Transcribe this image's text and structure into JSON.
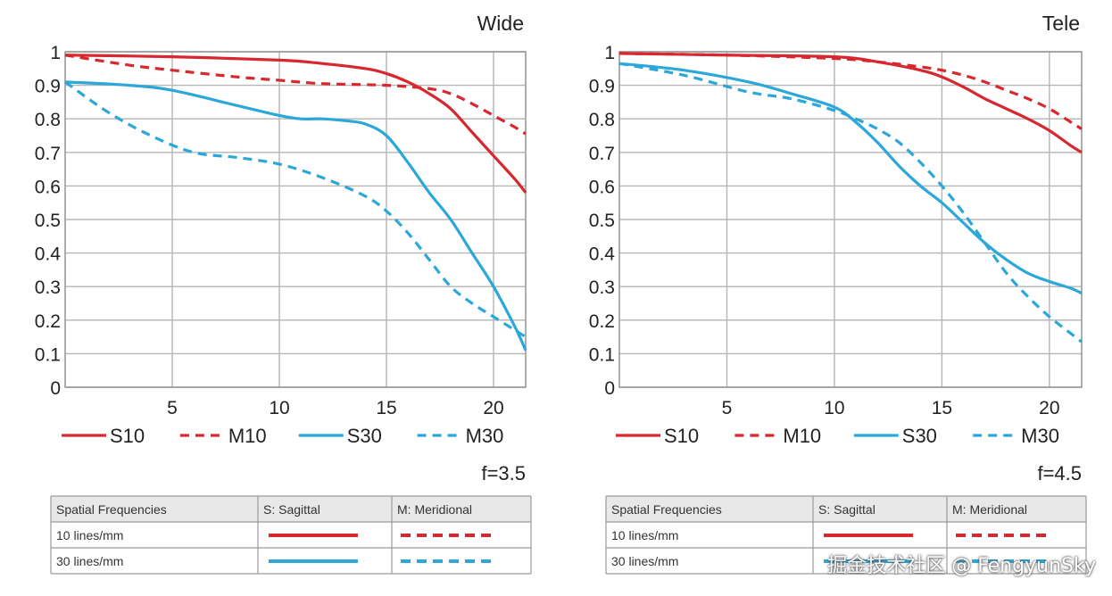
{
  "chart_data": [
    {
      "type": "line",
      "title": "Wide",
      "aperture_label": "f=3.5",
      "xlim": [
        0,
        21.5
      ],
      "ylim": [
        0,
        1
      ],
      "x_ticks": [
        5,
        10,
        15,
        20
      ],
      "x_tick_labels": [
        "5",
        "10",
        "15",
        "20"
      ],
      "y_ticks": [
        0,
        0.1,
        0.2,
        0.3,
        0.4,
        0.5,
        0.6,
        0.7,
        0.8,
        0.9,
        1
      ],
      "y_tick_labels": [
        "0",
        "0.1",
        "0.2",
        "0.3",
        "0.4",
        "0.5",
        "0.6",
        "0.7",
        "0.8",
        "0.9",
        "1"
      ],
      "grid": true,
      "legend_position": "bottom",
      "series": [
        {
          "name": "S10",
          "color": "#d7282f",
          "style": "solid",
          "x": [
            0,
            5,
            10,
            12,
            14,
            15,
            16,
            17,
            18,
            19,
            20,
            21,
            21.5
          ],
          "y": [
            0.99,
            0.985,
            0.975,
            0.965,
            0.95,
            0.935,
            0.91,
            0.875,
            0.83,
            0.76,
            0.69,
            0.62,
            0.58
          ]
        },
        {
          "name": "M10",
          "color": "#d7282f",
          "style": "dashed",
          "x": [
            0,
            3,
            5,
            8,
            10,
            12,
            15,
            17,
            18,
            19,
            20,
            21,
            21.5
          ],
          "y": [
            0.99,
            0.96,
            0.945,
            0.925,
            0.915,
            0.905,
            0.9,
            0.89,
            0.875,
            0.845,
            0.81,
            0.775,
            0.755
          ]
        },
        {
          "name": "S30",
          "color": "#2ba7d9",
          "style": "solid",
          "x": [
            0,
            3,
            5,
            8,
            10,
            11,
            12,
            13,
            14,
            15,
            16,
            17,
            18,
            19,
            20,
            21,
            21.5
          ],
          "y": [
            0.91,
            0.9,
            0.885,
            0.84,
            0.81,
            0.8,
            0.8,
            0.795,
            0.785,
            0.75,
            0.67,
            0.58,
            0.5,
            0.4,
            0.3,
            0.18,
            0.11
          ]
        },
        {
          "name": "M30",
          "color": "#2ba7d9",
          "style": "dashed",
          "x": [
            0,
            2,
            4,
            6,
            8,
            10,
            12,
            14,
            15,
            16,
            17,
            18,
            19,
            20,
            21,
            21.5
          ],
          "y": [
            0.91,
            0.82,
            0.75,
            0.7,
            0.685,
            0.665,
            0.625,
            0.57,
            0.525,
            0.46,
            0.38,
            0.3,
            0.25,
            0.21,
            0.17,
            0.15
          ]
        }
      ]
    },
    {
      "type": "line",
      "title": "Tele",
      "aperture_label": "f=4.5",
      "xlim": [
        0,
        21.5
      ],
      "ylim": [
        0,
        1
      ],
      "x_ticks": [
        5,
        10,
        15,
        20
      ],
      "x_tick_labels": [
        "5",
        "10",
        "15",
        "20"
      ],
      "y_ticks": [
        0,
        0.1,
        0.2,
        0.3,
        0.4,
        0.5,
        0.6,
        0.7,
        0.8,
        0.9,
        1
      ],
      "y_tick_labels": [
        "0",
        "0.1",
        "0.2",
        "0.3",
        "0.4",
        "0.5",
        "0.6",
        "0.7",
        "0.8",
        "0.9",
        "1"
      ],
      "grid": true,
      "legend_position": "bottom",
      "series": [
        {
          "name": "S10",
          "color": "#d7282f",
          "style": "solid",
          "x": [
            0,
            5,
            10,
            12,
            14,
            15,
            16,
            17,
            18,
            19,
            20,
            21,
            21.5
          ],
          "y": [
            0.995,
            0.99,
            0.985,
            0.97,
            0.945,
            0.925,
            0.895,
            0.86,
            0.83,
            0.8,
            0.765,
            0.72,
            0.7
          ]
        },
        {
          "name": "M10",
          "color": "#d7282f",
          "style": "dashed",
          "x": [
            0,
            5,
            10,
            12,
            14,
            15,
            16,
            17,
            18,
            19,
            20,
            21,
            21.5
          ],
          "y": [
            0.995,
            0.99,
            0.98,
            0.97,
            0.955,
            0.945,
            0.93,
            0.91,
            0.885,
            0.86,
            0.83,
            0.79,
            0.77
          ]
        },
        {
          "name": "S30",
          "color": "#2ba7d9",
          "style": "solid",
          "x": [
            0,
            3,
            6,
            8,
            10,
            11,
            12,
            13,
            14,
            15,
            16,
            17,
            18,
            19,
            20,
            21,
            21.5
          ],
          "y": [
            0.965,
            0.945,
            0.91,
            0.875,
            0.835,
            0.79,
            0.73,
            0.66,
            0.6,
            0.55,
            0.49,
            0.43,
            0.38,
            0.34,
            0.315,
            0.295,
            0.28
          ]
        },
        {
          "name": "M30",
          "color": "#2ba7d9",
          "style": "dashed",
          "x": [
            0,
            3,
            6,
            8,
            10,
            11,
            12,
            13,
            14,
            15,
            16,
            17,
            18,
            19,
            20,
            21,
            21.5
          ],
          "y": [
            0.965,
            0.93,
            0.88,
            0.86,
            0.825,
            0.8,
            0.77,
            0.73,
            0.67,
            0.6,
            0.52,
            0.43,
            0.34,
            0.27,
            0.21,
            0.16,
            0.135
          ]
        }
      ]
    }
  ],
  "tables": [
    {
      "headers": [
        "Spatial Frequencies",
        "S: Sagittal",
        "M: Meridional"
      ],
      "rows": [
        {
          "label": "10 lines/mm",
          "color": "#d7282f"
        },
        {
          "label": "30 lines/mm",
          "color": "#2ba7d9"
        }
      ]
    },
    {
      "headers": [
        "Spatial Frequencies",
        "S: Sagittal",
        "M: Meridional"
      ],
      "rows": [
        {
          "label": "10 lines/mm",
          "color": "#d7282f"
        },
        {
          "label": "30 lines/mm",
          "color": "#2ba7d9"
        }
      ]
    }
  ],
  "watermark": "掘金技术社区 @ FengyunSky"
}
